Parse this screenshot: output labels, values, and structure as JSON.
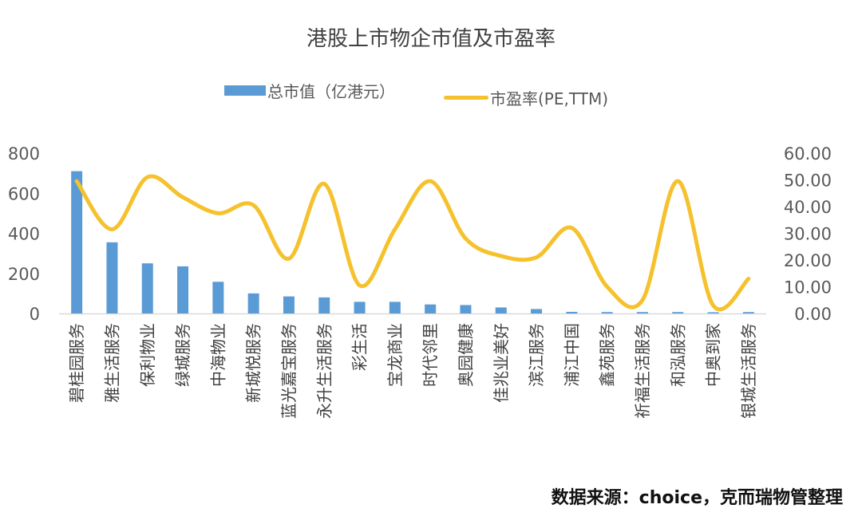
{
  "chart_data": {
    "type": "bar+line",
    "title": "港股上市物企市值及市盈率",
    "categories": [
      "碧桂园服务",
      "雅生活服务",
      "保利物业",
      "绿城服务",
      "中海物业",
      "新城悦服务",
      "蓝光嘉宝服务",
      "永升生活服务",
      "彩生活",
      "宝龙商业",
      "时代邻里",
      "奥园健康",
      "佳兆业美好",
      "滨江服务",
      "浦江中国",
      "鑫苑服务",
      "祈福生活服务",
      "和泓服务",
      "中奥到家",
      "银城生活服务"
    ],
    "series": [
      {
        "name": "总市值（亿港元）",
        "type": "bar",
        "axis": "left",
        "color": "#5B9BD5",
        "values": [
          710,
          355,
          250,
          235,
          158,
          100,
          85,
          80,
          58,
          58,
          45,
          42,
          30,
          22,
          8,
          7,
          7,
          7,
          6,
          7
        ]
      },
      {
        "name": "市盈率(PE,TTM)",
        "type": "line",
        "axis": "right",
        "color": "#F5C12D",
        "values": [
          49.5,
          31.5,
          51,
          43.5,
          37.5,
          40.5,
          20.5,
          48.5,
          10.5,
          31.5,
          49.5,
          28,
          21.5,
          21,
          32,
          10,
          5,
          49.5,
          3,
          13
        ]
      }
    ],
    "y_left": {
      "min": 0,
      "max": 800,
      "ticks": [
        "0",
        "200",
        "400",
        "600",
        "800"
      ]
    },
    "y_right": {
      "min": 0,
      "max": 60,
      "ticks": [
        "0.00",
        "10.00",
        "20.00",
        "30.00",
        "40.00",
        "50.00",
        "60.00"
      ]
    },
    "legend_position": "top"
  },
  "source": "数据来源：choice，克而瑞物管整理"
}
